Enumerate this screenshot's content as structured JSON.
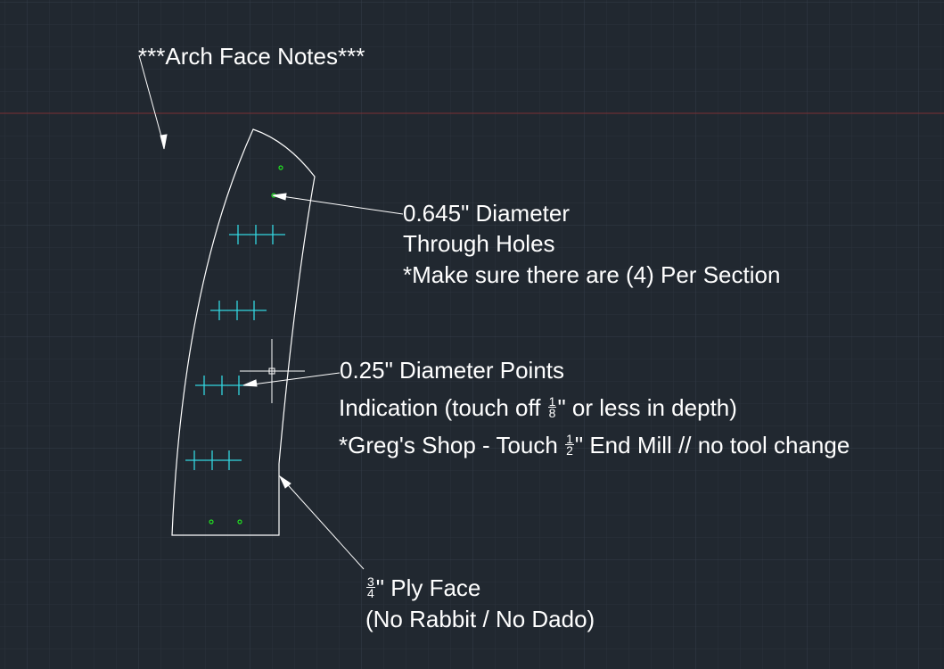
{
  "colors": {
    "background": "#212830",
    "grid_minor": "#2a323c",
    "grid_major": "#333c47",
    "axis_line": "#7a2f34",
    "outline": "#ffffff",
    "cyan_marks": "#33d6e0",
    "green_holes": "#22e022",
    "crosshair": "#ffffff"
  },
  "notes": {
    "title": "***Arch Face Notes***",
    "holes": {
      "line1": "0.645\" Diameter",
      "line2": "Through Holes",
      "line3": "*Make sure there are (4) Per Section"
    },
    "points": {
      "line1": "0.25\" Diameter Points",
      "line2_pre": "Indication (touch off ",
      "line2_frac_num": "1",
      "line2_frac_den": "8",
      "line2_post": "\" or less in depth)",
      "line3_pre": "*Greg's Shop - Touch ",
      "line3_frac_num": "1",
      "line3_frac_den": "2",
      "line3_post": "\" End Mill // no tool change"
    },
    "ply": {
      "frac_num": "3",
      "frac_den": "4",
      "line1_post": "\" Ply Face",
      "line2": "(No Rabbit / No Dado)"
    }
  }
}
